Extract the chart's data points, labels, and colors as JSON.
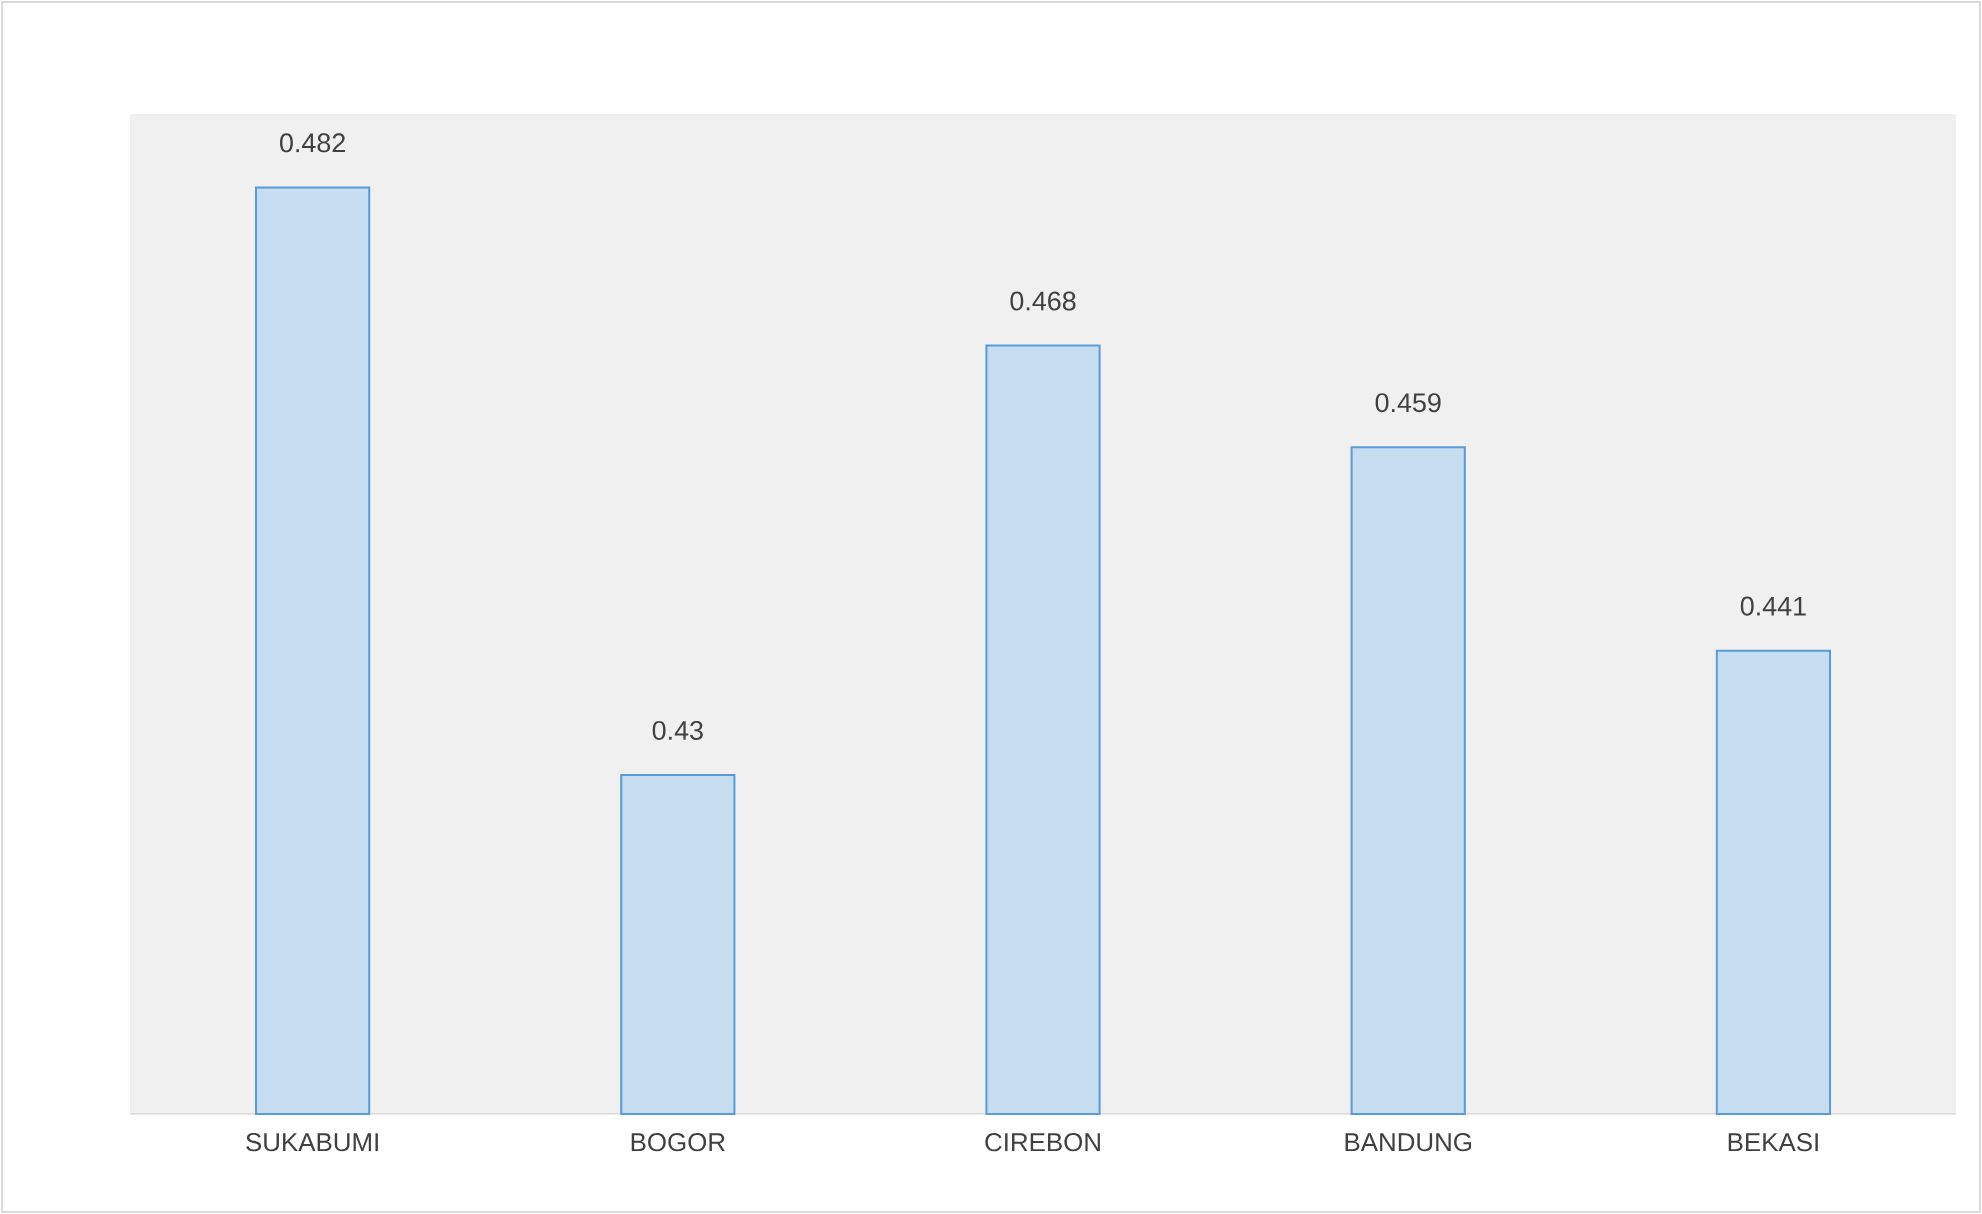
{
  "chart_data": {
    "type": "bar",
    "categories": [
      "SUKABUMI",
      "BOGOR",
      "CIREBON",
      "BANDUNG",
      "BEKASI"
    ],
    "values": [
      0.482,
      0.43,
      0.468,
      0.459,
      0.441
    ],
    "color": "#5b9bd5",
    "ylim": [
      0.4,
      0.4885
    ],
    "data_labels": true,
    "tick_labels": "x"
  }
}
